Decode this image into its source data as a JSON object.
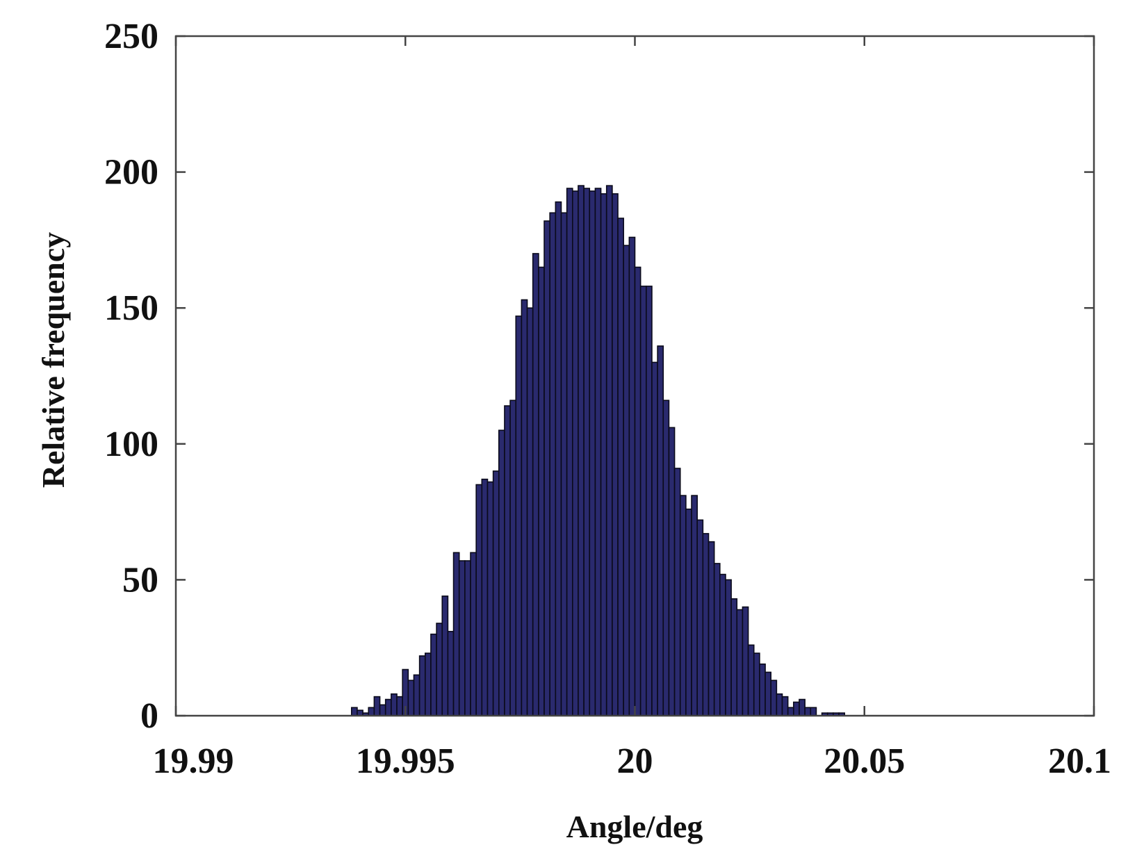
{
  "chart_data": {
    "type": "bar",
    "xlabel": "Angle/deg",
    "ylabel": "Relative frequency",
    "ylim": [
      0,
      250
    ],
    "x_tick_labels": [
      "19.99",
      "19.995",
      "20",
      "20.05",
      "20.1"
    ],
    "y_tick_labels": [
      "0",
      "50",
      "100",
      "150",
      "200",
      "250"
    ],
    "y_ticks": [
      0,
      50,
      100,
      150,
      200,
      250
    ],
    "grid": false,
    "bar_color": "#2a2a6e",
    "values": [
      0,
      0,
      0,
      0,
      0,
      0,
      0,
      0,
      0,
      0,
      0,
      0,
      0,
      0,
      0,
      0,
      0,
      0,
      0,
      0,
      0,
      0,
      0,
      0,
      0,
      0,
      0,
      0,
      0,
      0,
      0,
      3,
      2,
      1,
      3,
      7,
      4,
      6,
      8,
      7,
      17,
      13,
      15,
      22,
      23,
      30,
      34,
      44,
      31,
      60,
      57,
      57,
      60,
      85,
      87,
      86,
      90,
      105,
      114,
      116,
      147,
      153,
      150,
      170,
      165,
      182,
      185,
      189,
      185,
      194,
      193,
      195,
      194,
      193,
      194,
      192,
      195,
      192,
      183,
      173,
      176,
      165,
      158,
      158,
      130,
      136,
      116,
      106,
      91,
      81,
      76,
      81,
      72,
      67,
      64,
      56,
      52,
      50,
      43,
      39,
      40,
      26,
      23,
      19,
      16,
      13,
      8,
      7,
      3,
      5,
      6,
      3,
      3,
      0,
      1,
      1,
      1,
      1,
      0,
      0,
      0,
      0,
      0,
      0,
      0,
      0,
      0,
      0,
      0,
      0,
      0,
      0,
      0,
      0,
      0,
      0,
      0,
      0,
      0,
      0,
      0,
      0,
      0,
      0,
      0,
      0,
      0,
      0,
      0,
      0,
      0,
      0,
      0,
      0,
      0,
      0,
      0,
      0,
      0,
      0,
      0,
      0
    ]
  }
}
